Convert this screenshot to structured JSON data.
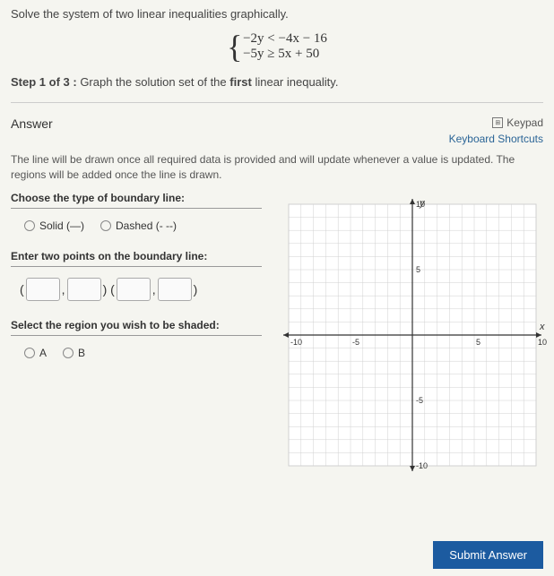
{
  "question": {
    "prompt": "Solve the system of two linear inequalities graphically.",
    "eq1": "−2y < −4x − 16",
    "eq2": "−5y ≥ 5x + 50",
    "step_label": "Step 1 of 3 :",
    "step_text": "Graph the solution set of the",
    "step_bold": "first",
    "step_text_after": "linear inequality."
  },
  "answer": {
    "header": "Answer",
    "keypad": "Keypad",
    "shortcuts": "Keyboard Shortcuts",
    "instruction": "The line will be drawn once all required data is provided and will update whenever a value is updated. The regions will be added once the line is drawn."
  },
  "boundary": {
    "title": "Choose the type of boundary line:",
    "solid_label": "Solid (—)",
    "dashed_label": "Dashed (- --)"
  },
  "points": {
    "title": "Enter two points on the boundary line:"
  },
  "region": {
    "title": "Select the region you wish to be shaded:",
    "option_a": "A",
    "option_b": "B"
  },
  "submit": {
    "label": "Submit Answer"
  },
  "graph": {
    "xlim": [
      -10,
      10
    ],
    "ylim": [
      -10,
      10
    ],
    "tick_step": 5,
    "axis_labels": {
      "x": "x",
      "y": "y"
    },
    "tick_values": [
      -10,
      -5,
      5,
      10
    ],
    "grid_color": "#d0d0d0",
    "axis_color": "#333333",
    "background": "#ffffff",
    "arrow_size": 6
  }
}
